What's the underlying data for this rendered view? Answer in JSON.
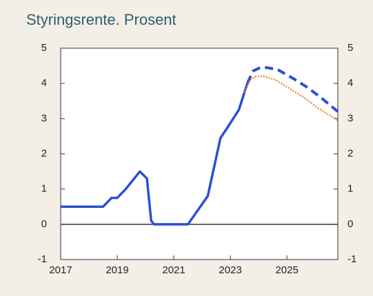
{
  "chart_data": {
    "type": "line",
    "title": "Styringsrente. Prosent",
    "xlim": [
      2017,
      2026.8
    ],
    "xticks": [
      2017,
      2019,
      2021,
      2023,
      2025
    ],
    "ylim": [
      -1,
      5
    ],
    "yticks": [
      -1,
      0,
      1,
      2,
      3,
      4,
      5
    ],
    "zero_line": true,
    "series": [
      {
        "color": "#2a4fd6",
        "style": "solid",
        "x": [
          2017,
          2018.5,
          2018.8,
          2019.0,
          2019.3,
          2019.8,
          2020.05,
          2020.2,
          2020.3,
          2021.5,
          2022.2,
          2022.65,
          2022.9,
          2023.3,
          2023.6
        ],
        "values": [
          0.5,
          0.5,
          0.75,
          0.75,
          1.0,
          1.5,
          1.3,
          0.1,
          0,
          0,
          0.8,
          2.45,
          2.75,
          3.25,
          4.0
        ]
      },
      {
        "color": "#2a4fd6",
        "style": "dashed",
        "x": [
          2023.6,
          2023.8,
          2024.0,
          2024.3,
          2024.7,
          2025.2,
          2025.7,
          2026.2,
          2026.8
        ],
        "values": [
          4.0,
          4.35,
          4.43,
          4.45,
          4.38,
          4.15,
          3.9,
          3.6,
          3.2
        ]
      },
      {
        "color": "#e8883a",
        "style": "dotted",
        "x": [
          2023.5,
          2023.7,
          2023.9,
          2024.2,
          2024.6,
          2025.1,
          2025.6,
          2026.1,
          2026.8
        ],
        "values": [
          3.75,
          4.1,
          4.2,
          4.2,
          4.1,
          3.85,
          3.6,
          3.3,
          2.95
        ]
      }
    ]
  }
}
